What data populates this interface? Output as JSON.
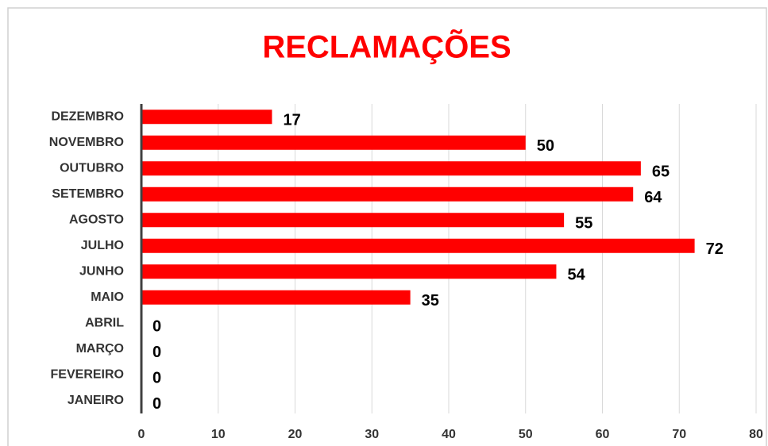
{
  "chart_data": {
    "type": "barh",
    "title": "RECLAMAÇÕES",
    "categories": [
      "DEZEMBRO",
      "NOVEMBRO",
      "OUTUBRO",
      "SETEMBRO",
      "AGOSTO",
      "JULHO",
      "JUNHO",
      "MAIO",
      "ABRIL",
      "MARÇO",
      "FEVEREIRO",
      "JANEIRO"
    ],
    "values": [
      17,
      50,
      65,
      64,
      55,
      72,
      54,
      35,
      0,
      0,
      0,
      0
    ],
    "color": "#ff0000",
    "xlim": [
      0,
      80
    ],
    "xticks": [
      0,
      10,
      20,
      30,
      40,
      50,
      60,
      70,
      80
    ],
    "grid": true
  }
}
